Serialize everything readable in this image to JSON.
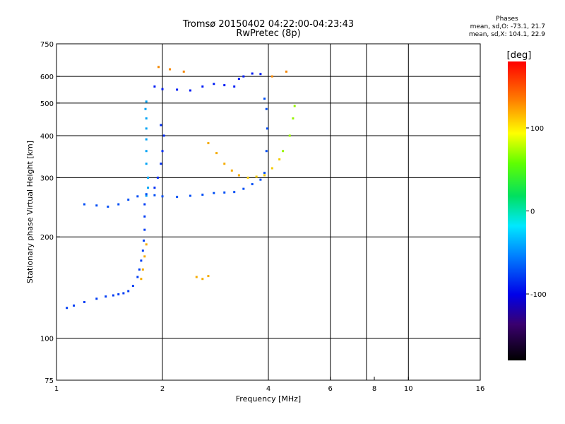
{
  "chart_data": {
    "type": "scatter",
    "title": "Tromsø 20150402 04:22:00-04:23:43",
    "subtitle": "RwPretec (8p)",
    "xlabel": "Frequency [MHz]",
    "ylabel": "Stationary phase Virtual Height [km]",
    "x_scale": "log",
    "y_scale": "log",
    "xlim": [
      1,
      16
    ],
    "ylim": [
      75,
      750
    ],
    "x_ticks": [
      1,
      2,
      4,
      6,
      8,
      10,
      16
    ],
    "y_ticks": [
      75,
      100,
      200,
      300,
      400,
      500,
      600,
      750
    ],
    "x_grid": [
      2,
      4,
      6,
      7.6,
      10
    ],
    "y_grid": [
      100,
      200,
      300,
      400,
      500,
      600
    ],
    "phase_stats": {
      "heading": "Phases",
      "o_line": "mean, sd,O: -73.1, 21.7",
      "x_line": "mean, sd,X: 104.1, 22.9"
    },
    "colorbar": {
      "label": "[deg]",
      "min": -180,
      "max": 180,
      "ticks": [
        100,
        0,
        -100
      ]
    },
    "traces": [
      {
        "phase": -90,
        "points": [
          [
            1.07,
            123
          ],
          [
            1.12,
            125
          ],
          [
            1.2,
            128
          ],
          [
            1.3,
            131
          ],
          [
            1.38,
            133
          ],
          [
            1.45,
            134
          ],
          [
            1.5,
            135
          ],
          [
            1.55,
            136
          ],
          [
            1.6,
            138
          ],
          [
            1.65,
            143
          ],
          [
            1.7,
            152
          ],
          [
            1.72,
            160
          ],
          [
            1.74,
            170
          ],
          [
            1.76,
            182
          ],
          [
            1.77,
            195
          ],
          [
            1.78,
            210
          ],
          [
            1.78,
            230
          ],
          [
            1.78,
            250
          ]
        ]
      },
      {
        "phase": -60,
        "points": [
          [
            1.8,
            265
          ],
          [
            1.82,
            280
          ],
          [
            1.82,
            300
          ],
          [
            1.8,
            330
          ],
          [
            1.8,
            360
          ],
          [
            1.8,
            390
          ],
          [
            1.8,
            420
          ],
          [
            1.8,
            450
          ],
          [
            1.79,
            480
          ],
          [
            1.8,
            505
          ]
        ]
      },
      {
        "phase": -95,
        "points": [
          [
            1.9,
            280
          ],
          [
            1.94,
            300
          ],
          [
            1.98,
            330
          ],
          [
            2.0,
            360
          ],
          [
            2.02,
            400
          ],
          [
            1.98,
            430
          ]
        ]
      },
      {
        "phase": -85,
        "points": [
          [
            1.2,
            250
          ],
          [
            1.3,
            248
          ],
          [
            1.4,
            246
          ],
          [
            1.5,
            250
          ],
          [
            1.6,
            258
          ],
          [
            1.7,
            264
          ],
          [
            1.8,
            268
          ],
          [
            1.9,
            266
          ],
          [
            2.0,
            264
          ],
          [
            2.2,
            263
          ],
          [
            2.4,
            265
          ],
          [
            2.6,
            267
          ],
          [
            2.8,
            270
          ],
          [
            3.0,
            271
          ],
          [
            3.2,
            272
          ],
          [
            3.4,
            278
          ],
          [
            3.6,
            287
          ],
          [
            3.8,
            296
          ],
          [
            3.9,
            310
          ],
          [
            3.95,
            360
          ],
          [
            3.97,
            420
          ],
          [
            3.95,
            480
          ],
          [
            3.9,
            515
          ]
        ]
      },
      {
        "phase": -100,
        "points": [
          [
            1.9,
            560
          ],
          [
            2.0,
            550
          ],
          [
            2.2,
            548
          ],
          [
            2.4,
            545
          ],
          [
            2.6,
            560
          ],
          [
            2.8,
            570
          ],
          [
            3.0,
            565
          ],
          [
            3.2,
            560
          ],
          [
            3.3,
            590
          ],
          [
            3.4,
            600
          ],
          [
            3.6,
            612
          ],
          [
            3.8,
            610
          ]
        ]
      },
      {
        "phase": 130,
        "points": [
          [
            2.7,
            380
          ],
          [
            2.85,
            355
          ],
          [
            3.0,
            330
          ],
          [
            3.15,
            315
          ],
          [
            3.3,
            305
          ]
        ]
      },
      {
        "phase": 120,
        "points": [
          [
            3.5,
            300
          ],
          [
            3.7,
            302
          ],
          [
            3.9,
            305
          ],
          [
            4.1,
            320
          ],
          [
            4.3,
            340
          ]
        ]
      },
      {
        "phase": 80,
        "points": [
          [
            4.4,
            360
          ],
          [
            4.6,
            400
          ],
          [
            4.7,
            450
          ],
          [
            4.75,
            490
          ]
        ]
      },
      {
        "phase": 130,
        "points": [
          [
            1.74,
            150
          ],
          [
            1.76,
            160
          ],
          [
            1.78,
            175
          ],
          [
            1.8,
            190
          ],
          [
            2.5,
            152
          ],
          [
            2.6,
            150
          ],
          [
            2.7,
            153
          ]
        ]
      },
      {
        "phase": 140,
        "points": [
          [
            1.95,
            640
          ],
          [
            2.1,
            630
          ],
          [
            2.3,
            620
          ],
          [
            4.1,
            600
          ],
          [
            4.5,
            620
          ]
        ]
      }
    ]
  }
}
